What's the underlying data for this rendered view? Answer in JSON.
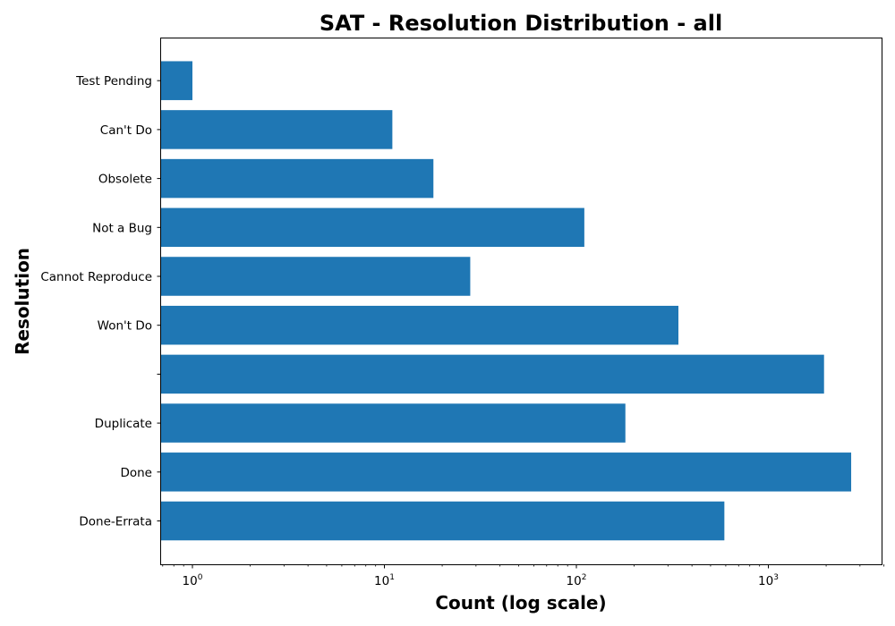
{
  "chart_data": {
    "type": "bar",
    "orientation": "horizontal",
    "title": "SAT - Resolution Distribution - all",
    "xlabel": "Count (log scale)",
    "ylabel": "Resolution",
    "x_scale": "log",
    "xlim": [
      0.7,
      4000
    ],
    "x_ticks": [
      {
        "value": 1,
        "base": "10",
        "exp": "0"
      },
      {
        "value": 10,
        "base": "10",
        "exp": "1"
      },
      {
        "value": 100,
        "base": "10",
        "exp": "2"
      },
      {
        "value": 1000,
        "base": "10",
        "exp": "3"
      }
    ],
    "categories": [
      "Done-Errata",
      "Done",
      "Duplicate",
      "",
      "Won't Do",
      "Cannot Reproduce",
      "Not a Bug",
      "Obsolete",
      "Can't Do",
      "Test Pending"
    ],
    "values": [
      590,
      2700,
      180,
      1950,
      340,
      28,
      110,
      18,
      11,
      1
    ],
    "bar_color": "#1f77b4",
    "grid": false,
    "legend": "none"
  }
}
